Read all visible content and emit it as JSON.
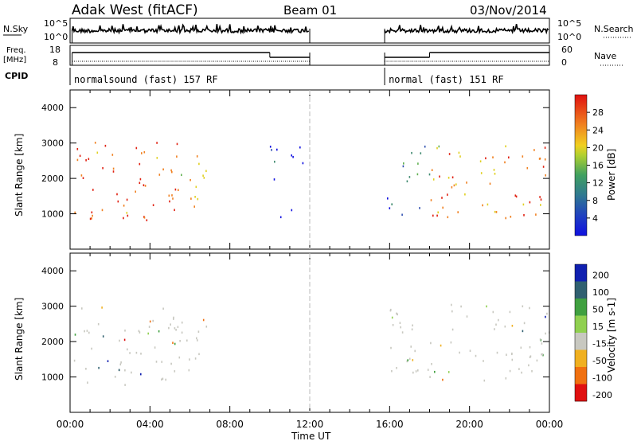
{
  "header": {
    "station": "Adak West (fitACF)",
    "beam": "Beam 01",
    "date": "03/Nov/2014"
  },
  "top_panels": {
    "nsky_label": "N.Sky",
    "nsky_ticks": [
      "10^5",
      "10^0"
    ],
    "nsearch_label": "N.Search",
    "nsearch_ticks": [
      "10^5",
      "10^0"
    ],
    "freq_label": "Freq.",
    "freq_unit": "[MHz]",
    "freq_ticks": [
      "18",
      "8"
    ],
    "nave_label": "Nave",
    "nave_ticks": [
      "60",
      "0"
    ],
    "cpid_label": "CPID",
    "cpid_segments": [
      {
        "label": "normalsound (fast) 157 RF",
        "start_h": 0,
        "end_h": 12
      },
      {
        "label": "normal (fast) 151 RF",
        "start_h": 15.75,
        "end_h": 24
      }
    ]
  },
  "chart_data": [
    {
      "type": "heatmap",
      "title": "",
      "xlabel": "Time UT",
      "ylabel": "Slant Range [km]",
      "xlim": [
        0,
        24
      ],
      "ylim": [
        0,
        4500
      ],
      "x_ticks": [
        "00:00",
        "04:00",
        "08:00",
        "12:00",
        "16:00",
        "20:00",
        "00:00"
      ],
      "y_ticks": [
        1000,
        2000,
        3000,
        4000
      ],
      "colorbar": {
        "label": "Power [dB]",
        "ticks": [
          4,
          8,
          12,
          16,
          20,
          24,
          28
        ],
        "colors": [
          "#1010e0",
          "#3050b0",
          "#408a70",
          "#60b050",
          "#e0d020",
          "#f08020",
          "#e02010"
        ]
      },
      "data_gaps": [
        [
          12,
          15.75
        ]
      ],
      "echo_regions": [
        {
          "t0": 0.1,
          "t1": 5.5,
          "r0": 800,
          "r1": 3100,
          "power_db": 26
        },
        {
          "t0": 5.5,
          "t1": 7.0,
          "r0": 1100,
          "r1": 2800,
          "power_db": 20
        },
        {
          "t0": 10.0,
          "t1": 11.8,
          "r0": 900,
          "r1": 1200,
          "power_db": 6
        },
        {
          "t0": 10.0,
          "t1": 11.8,
          "r0": 1900,
          "r1": 3000,
          "power_db": 6
        },
        {
          "t0": 15.8,
          "t1": 17.8,
          "r0": 1000,
          "r1": 1500,
          "power_db": 6
        },
        {
          "t0": 16.5,
          "t1": 18.5,
          "r0": 1800,
          "r1": 3000,
          "power_db": 12
        },
        {
          "t0": 18.0,
          "t1": 24.0,
          "r0": 900,
          "r1": 3000,
          "power_db": 24
        }
      ]
    },
    {
      "type": "heatmap",
      "title": "",
      "xlabel": "Time UT",
      "ylabel": "Slant Range [km]",
      "xlim": [
        0,
        24
      ],
      "ylim": [
        0,
        4500
      ],
      "x_ticks": [
        "00:00",
        "04:00",
        "08:00",
        "12:00",
        "16:00",
        "20:00",
        "00:00"
      ],
      "y_ticks": [
        1000,
        2000,
        3000,
        4000
      ],
      "colorbar": {
        "label": "Velocity [m s-1]",
        "ticks": [
          200,
          100,
          50,
          15,
          -15,
          -50,
          -100,
          -200
        ],
        "colors": [
          "#1020b0",
          "#306070",
          "#40a040",
          "#90d050",
          "#c8c8c0",
          "#f0b020",
          "#f07010",
          "#e01010"
        ]
      },
      "data_gaps": [
        [
          12,
          15.75
        ]
      ],
      "echo_regions": [
        {
          "t0": 0.1,
          "t1": 5.5,
          "r0": 800,
          "r1": 3000,
          "velocity": 0
        },
        {
          "t0": 5.0,
          "t1": 7.0,
          "r0": 1100,
          "r1": 2800,
          "velocity": 0
        },
        {
          "t0": 16.0,
          "t1": 24.0,
          "r0": 900,
          "r1": 3100,
          "velocity": 0
        }
      ]
    }
  ]
}
